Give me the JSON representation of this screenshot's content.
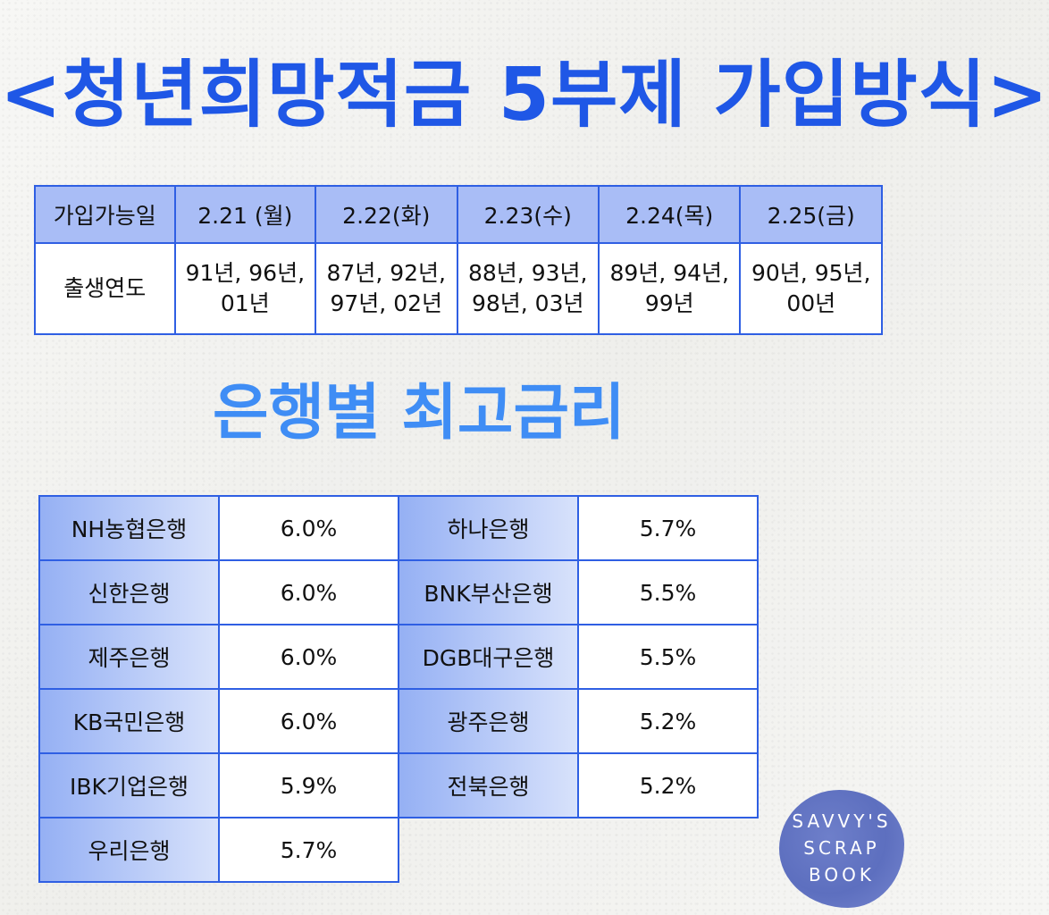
{
  "title": "<청년희망적금 5부제 가입방식>",
  "schedule": {
    "header_label": "가입가능일",
    "row_label": "출생연도",
    "days": [
      "2.21 (월)",
      "2.22(화)",
      "2.23(수)",
      "2.24(목)",
      "2.25(금)"
    ],
    "years": [
      "91년, 96년,\n01년",
      "87년, 92년,\n97년, 02년",
      "88년, 93년,\n98년, 03년",
      "89년, 94년,\n99년",
      "90년, 95년,\n00년"
    ]
  },
  "rates_title": "은행별 최고금리",
  "rates": {
    "left": [
      {
        "bank": "NH농협은행",
        "rate": "6.0%"
      },
      {
        "bank": "신한은행",
        "rate": "6.0%"
      },
      {
        "bank": "제주은행",
        "rate": "6.0%"
      },
      {
        "bank": "KB국민은행",
        "rate": "6.0%"
      },
      {
        "bank": "IBK기업은행",
        "rate": "5.9%"
      },
      {
        "bank": "우리은행",
        "rate": "5.7%"
      }
    ],
    "right": [
      {
        "bank": "하나은행",
        "rate": "5.7%"
      },
      {
        "bank": "BNK부산은행",
        "rate": "5.5%"
      },
      {
        "bank": "DGB대구은행",
        "rate": "5.5%"
      },
      {
        "bank": "광주은행",
        "rate": "5.2%"
      },
      {
        "bank": "전북은행",
        "rate": "5.2%"
      }
    ]
  },
  "stamp": {
    "lines": [
      "SAVVY'S",
      "SCRAP",
      "BOOK"
    ]
  },
  "colors": {
    "title": "#1f57e6",
    "section_title": "#3f8df5",
    "border": "#2f5fe3",
    "header_fill": "#a9bdf6",
    "stamp": "#6474c4"
  }
}
